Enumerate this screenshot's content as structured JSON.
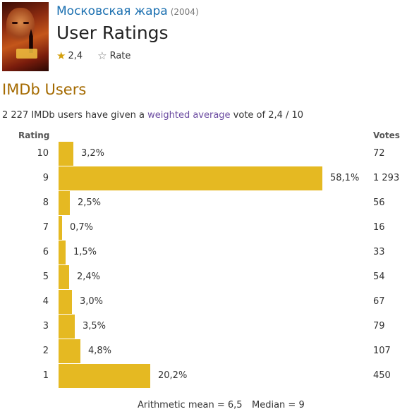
{
  "header": {
    "poster_icon": "movie-poster",
    "movie_title": "Московская жара",
    "year": "(2004)",
    "page_title": "User Ratings",
    "rating_value": "2,4",
    "rate_label": "Rate",
    "rated_star_icon": "star-filled",
    "rate_star_icon": "star-outline"
  },
  "section": {
    "title": "IMDb Users",
    "summary_prefix": "2 227 IMDb users have given a ",
    "summary_link": "weighted average",
    "summary_suffix": " vote of 2,4 / 10"
  },
  "table": {
    "rating_header": "Rating",
    "votes_header": "Votes",
    "bar_color": "#e5b922"
  },
  "chart_data": {
    "type": "bar",
    "orientation": "horizontal",
    "categories": [
      "10",
      "9",
      "8",
      "7",
      "6",
      "5",
      "4",
      "3",
      "2",
      "1"
    ],
    "percent_labels": [
      "3,2%",
      "58,1%",
      "2,5%",
      "0,7%",
      "1,5%",
      "2,4%",
      "3,0%",
      "3,5%",
      "4,8%",
      "20,2%"
    ],
    "values": [
      3.2,
      58.1,
      2.5,
      0.7,
      1.5,
      2.4,
      3.0,
      3.5,
      4.8,
      20.2
    ],
    "votes": [
      "72",
      "1 293",
      "56",
      "16",
      "33",
      "54",
      "67",
      "79",
      "107",
      "450"
    ]
  },
  "footer": {
    "mean": "Arithmetic mean = 6,5",
    "median": "Median = 9"
  }
}
